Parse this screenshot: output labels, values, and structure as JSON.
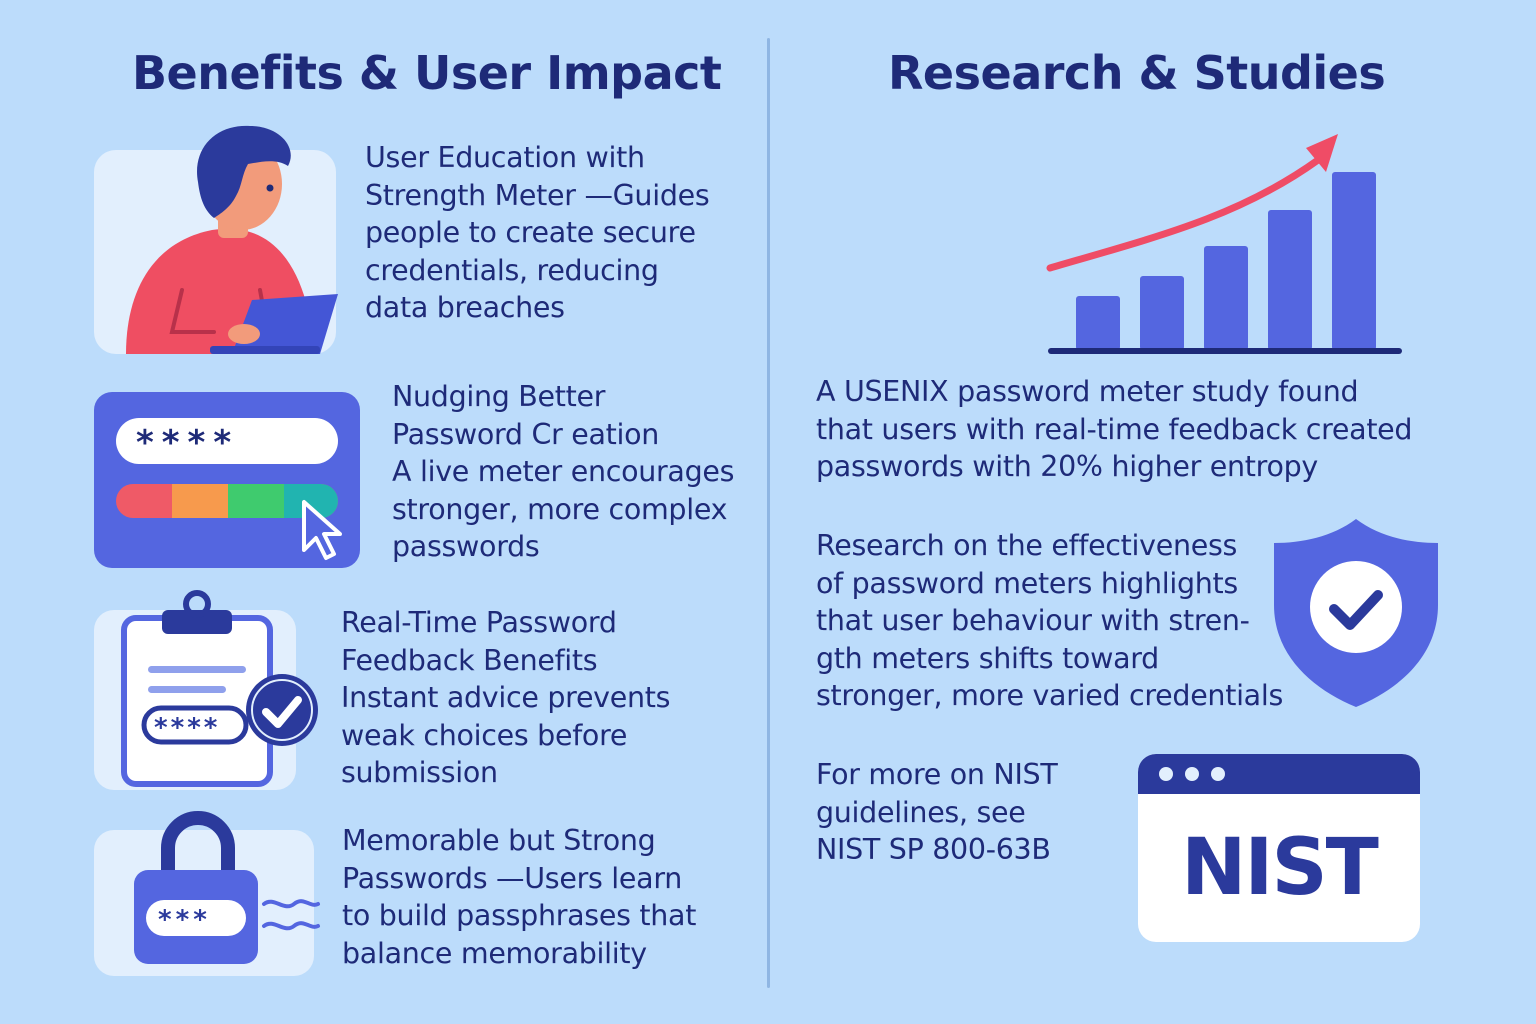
{
  "left": {
    "title": "Benefits & User Impact",
    "items": [
      {
        "lines": [
          "User Education with",
          "Strength Meter —Guides",
          "people to create secure",
          "credentials, reducing",
          "data breaches"
        ],
        "icon": "person-laptop-icon"
      },
      {
        "lines": [
          "Nudging Better",
          "Password Cr eation",
          "A live meter encourages",
          "stronger, more complex",
          "passwords"
        ],
        "icon": "password-meter-icon"
      },
      {
        "lines": [
          "Real-Time Password",
          "Feedback Benefits",
          "Instant advice prevents",
          "weak choices before",
          "submission"
        ],
        "icon": "clipboard-check-icon"
      },
      {
        "lines": [
          "Memorable but Strong",
          "Passwords —Users learn",
          "to build passphrases that",
          "balance memorability"
        ],
        "icon": "padlock-icon"
      }
    ]
  },
  "right": {
    "title": "Research & Studies",
    "chart_icon": "bar-chart-arrow-icon",
    "study_lines": [
      "A USENIX password meter study found",
      "that users with real-time feedback created",
      "passwords with 20% higher entropy"
    ],
    "research_lines": [
      "Research on the effectiveness",
      "of password meters highlights",
      "that user behaviour with stren-",
      "gth meters shifts toward",
      "stronger, more varied credentials"
    ],
    "research_icon": "shield-check-icon",
    "nist_lines": [
      "For more on NIST",
      "guidelines, see",
      "NIST SP 800-63B"
    ],
    "nist_window": {
      "logo_text": "NIST",
      "icon": "browser-window-icon"
    }
  },
  "colors": {
    "background": "#bcdcfb",
    "text": "#1e2a78",
    "accent_blue": "#5466e0",
    "accent_red": "#ef4c66",
    "meter": [
      "#ef5a67",
      "#f79a4d",
      "#3fcb6e",
      "#21b4b0"
    ]
  }
}
